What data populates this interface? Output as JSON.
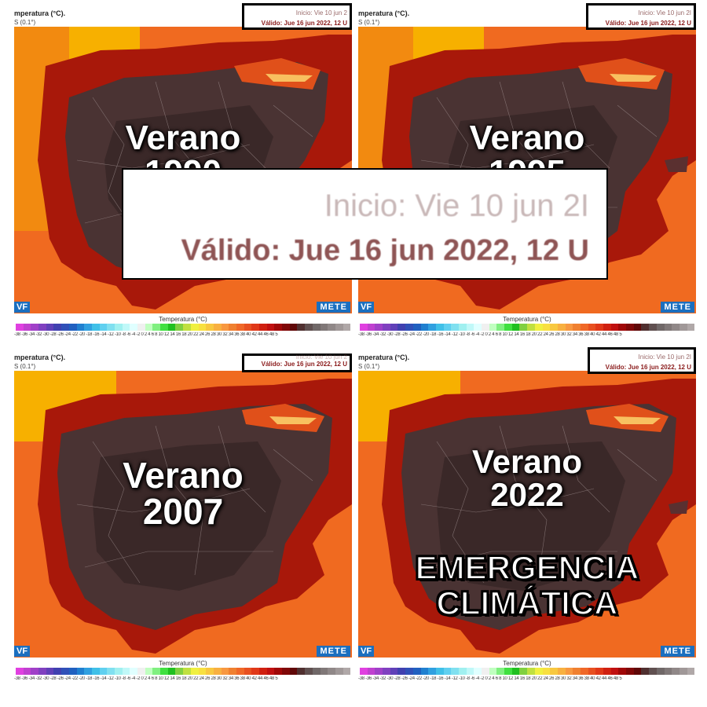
{
  "panels": [
    {
      "header_title": "mperatura (°C).",
      "header_sub": "S (0.1°)",
      "inicio": "Inicio: Vie 10 jun 2",
      "valido": "Válido: Jue 16 jun 2022, 12 U",
      "caption_line1": "Verano",
      "caption_line2": "1990",
      "brand_left": "VF",
      "brand_right": "METE"
    },
    {
      "header_title": "mperatura (°C).",
      "header_sub": "S (0.1°)",
      "inicio": "Inicio: Vie 10 jun 2I",
      "valido": "Válido: Jue 16 jun 2022, 12 U",
      "caption_line1": "Verano",
      "caption_line2": "1995",
      "brand_left": "VF",
      "brand_right": "METE"
    },
    {
      "header_title": "mperatura (°C).",
      "header_sub": "S (0.1°)",
      "inicio": "Inicio: Vie 10 jun 2",
      "valido": "Válido: Jue 16 jun 2022, 12 U",
      "caption_line1": "Verano",
      "caption_line2": "2007",
      "brand_left": "VF",
      "brand_right": "METE"
    },
    {
      "header_title": "mperatura (°C).",
      "header_sub": "S (0.1°)",
      "inicio": "Inicio: Vie 10 jun 2I",
      "valido": "Válido: Jue 16 jun 2022, 12 U",
      "caption_line1": "Verano",
      "caption_line2": "2022",
      "brand_left": "VF",
      "brand_right": "METE",
      "emergency_line1": "EMERGENCIA",
      "emergency_line2": "CLIMÁTICA"
    }
  ],
  "legend": {
    "title": "Temperatura (°C)",
    "ticks": "-38 -36 -34 -32 -30 -28 -26 -24 -22 -20 -18 -16 -14 -12 -10 -8 -6 -4 -2 0 2 4 6 8 10 12 14 16 18 20 22 24 26 28 30 32 34 36 38 40 42 44 46 48 5",
    "colors": [
      "#e040e0",
      "#c040d0",
      "#a040c8",
      "#8040c0",
      "#6040b8",
      "#4040b0",
      "#3050b8",
      "#2060c0",
      "#2080d0",
      "#30a0e0",
      "#40c0e8",
      "#60d0f0",
      "#80e0f0",
      "#a0f0f0",
      "#c0f8f8",
      "#e0ffff",
      "#f0f0f0",
      "#c0ffc0",
      "#80f080",
      "#40e040",
      "#20c020",
      "#80d040",
      "#c0e040",
      "#f0f040",
      "#f8e040",
      "#f8c840",
      "#f8b040",
      "#f89840",
      "#f08030",
      "#f06828",
      "#e85020",
      "#e03818",
      "#d02010",
      "#c01010",
      "#a00808",
      "#800808",
      "#600808",
      "#503030",
      "#605050",
      "#706868",
      "#807878",
      "#908888",
      "#a09898",
      "#b0a8a8"
    ]
  },
  "zoom": {
    "inicio": "Inicio: Vie 10 jun 2I",
    "valido": "Válido: Jue 16 jun 2022, 12 U"
  },
  "colors": {
    "sea_orange": "#f06a20",
    "sea_yellow": "#f7b000",
    "land_red": "#a8180a",
    "land_dark": "#4a3333",
    "land_darker": "#3a2828"
  }
}
